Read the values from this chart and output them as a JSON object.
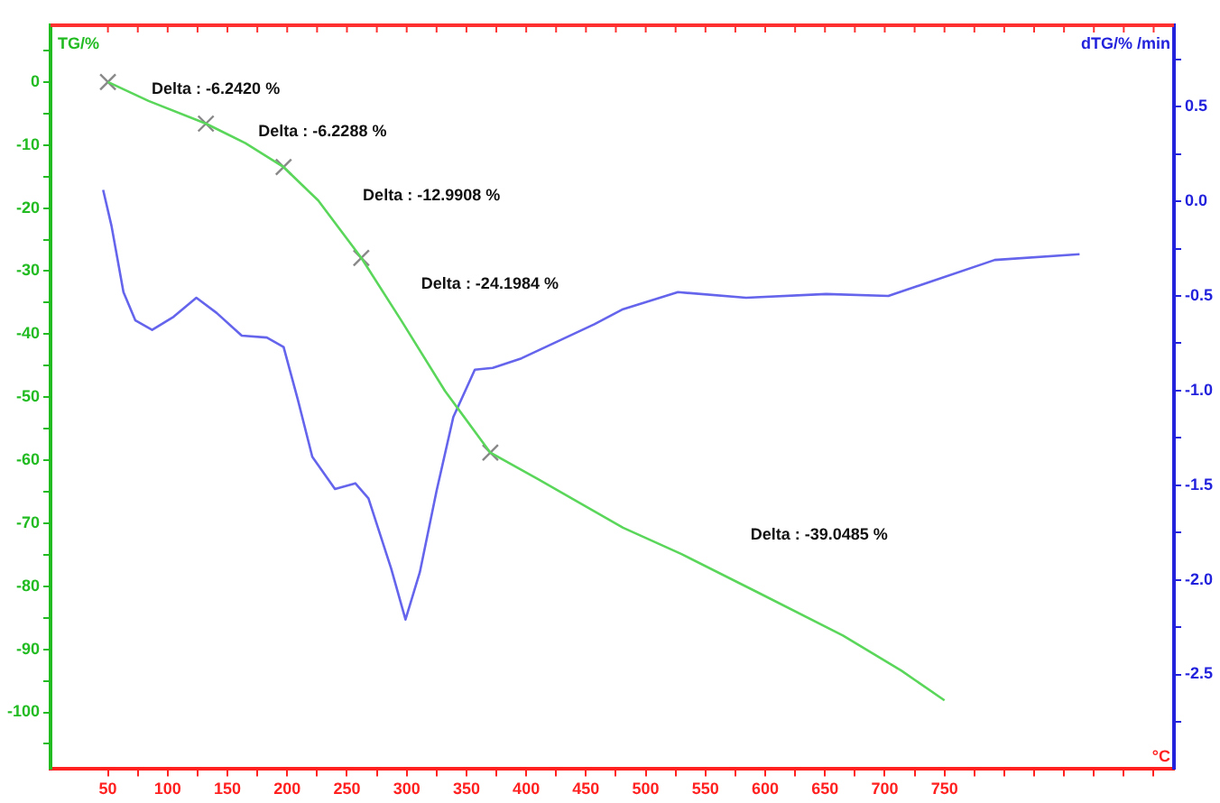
{
  "chart_data": {
    "type": "line",
    "xlabel": "°C",
    "ylabel": "TG/%",
    "y2label": "dTG/% /min",
    "grid": false,
    "legend": false,
    "marker": "none",
    "line_style": "solid",
    "xlim": [
      2,
      942
    ],
    "xticks": [
      50,
      {
        "value": 75,
        "label": null
      },
      100,
      {
        "value": 125,
        "label": null
      },
      150,
      {
        "value": 175,
        "label": null
      },
      200,
      {
        "value": 225,
        "label": null
      },
      250,
      {
        "value": 275,
        "label": null
      },
      300,
      {
        "value": 325,
        "label": null
      },
      350,
      {
        "value": 375,
        "label": null
      },
      400,
      {
        "value": 425,
        "label": null
      },
      450,
      {
        "value": 475,
        "label": null
      },
      500,
      {
        "value": 525,
        "label": null
      },
      550,
      {
        "value": 575,
        "label": null
      },
      600,
      {
        "value": 625,
        "label": null
      },
      650,
      {
        "value": 675,
        "label": null
      },
      700,
      {
        "value": 725,
        "label": null
      },
      750,
      {
        "value": 775,
        "label": null
      },
      {
        "value": 800,
        "label": null
      },
      {
        "value": 825,
        "label": null
      },
      {
        "value": 850,
        "label": null
      },
      {
        "value": 875,
        "label": null
      },
      {
        "value": 900,
        "label": null
      },
      {
        "value": 925,
        "label": null
      }
    ],
    "ylim": [
      -109,
      9
    ],
    "yticks": [
      {
        "value": 5,
        "label": null
      },
      0,
      {
        "value": -5,
        "label": null
      },
      -10,
      {
        "value": -15,
        "label": null
      },
      -20,
      {
        "value": -25,
        "label": null
      },
      -30,
      {
        "value": -35,
        "label": null
      },
      -40,
      {
        "value": -45,
        "label": null
      },
      -50,
      {
        "value": -55,
        "label": null
      },
      -60,
      {
        "value": -65,
        "label": null
      },
      -70,
      {
        "value": -75,
        "label": null
      },
      -80,
      {
        "value": -85,
        "label": null
      },
      -90,
      {
        "value": -95,
        "label": null
      },
      -100,
      {
        "value": -105,
        "label": null
      }
    ],
    "y2lim": [
      -3.0,
      0.93
    ],
    "y2ticks": [
      {
        "value": 0.75,
        "label": null
      },
      0.5,
      {
        "value": 0.25,
        "label": null
      },
      {
        "value": 0,
        "label": "0.0"
      },
      {
        "value": -0.25,
        "label": null
      },
      -0.5,
      {
        "value": -0.75,
        "label": null
      },
      {
        "value": -1,
        "label": "-1.0"
      },
      {
        "value": -1.25,
        "label": null
      },
      -1.5,
      {
        "value": -1.75,
        "label": null
      },
      {
        "value": -2,
        "label": "-2.0"
      },
      {
        "value": -2.25,
        "label": null
      },
      -2.5,
      {
        "value": -2.75,
        "label": null
      }
    ],
    "series": [
      {
        "color": "#5ad65a",
        "x": [
          50,
          84,
          132,
          165,
          197,
          226,
          262,
          296,
          332,
          370,
          410,
          481,
          530,
          594,
          665,
          714,
          750
        ],
        "values": [
          0,
          -3,
          -6.6,
          -9.7,
          -13.5,
          -18.8,
          -27.9,
          -38,
          -49,
          -58.8,
          -63,
          -70.7,
          -74.9,
          -81,
          -87.8,
          -93.4,
          -98.1
        ]
      },
      {
        "color": "#6464ec",
        "axis": "y2",
        "x": [
          46,
          53,
          63,
          73,
          87,
          105,
          124,
          141,
          162,
          183,
          197,
          209,
          221,
          240,
          257,
          268,
          287,
          299,
          311,
          325,
          339,
          357,
          372,
          396,
          457,
          481,
          527,
          584,
          651,
          703,
          736,
          792,
          863
        ],
        "values": [
          0.06,
          -0.13,
          -0.48,
          -0.63,
          -0.68,
          -0.61,
          -0.51,
          -0.59,
          -0.71,
          -0.72,
          -0.77,
          -1.05,
          -1.35,
          -1.52,
          -1.49,
          -1.57,
          -1.94,
          -2.21,
          -1.96,
          -1.53,
          -1.14,
          -0.89,
          -0.88,
          -0.83,
          -0.65,
          -0.57,
          -0.48,
          -0.51,
          -0.49,
          -0.5,
          -0.43,
          -0.31,
          -0.28
        ]
      },
      {
        "type": "scatter",
        "marker": "cross",
        "color": "#888888",
        "x": [
          50,
          132,
          197,
          262,
          370
        ],
        "values": [
          0,
          -6.6,
          -13.5,
          -27.9,
          -58.8
        ]
      }
    ],
    "annotations": [
      "Delta : -6.2420 %",
      "Delta : -6.2288 %",
      "Delta : -12.9908 %",
      "Delta : -24.1984 %",
      "Delta : -39.0485 %"
    ]
  }
}
